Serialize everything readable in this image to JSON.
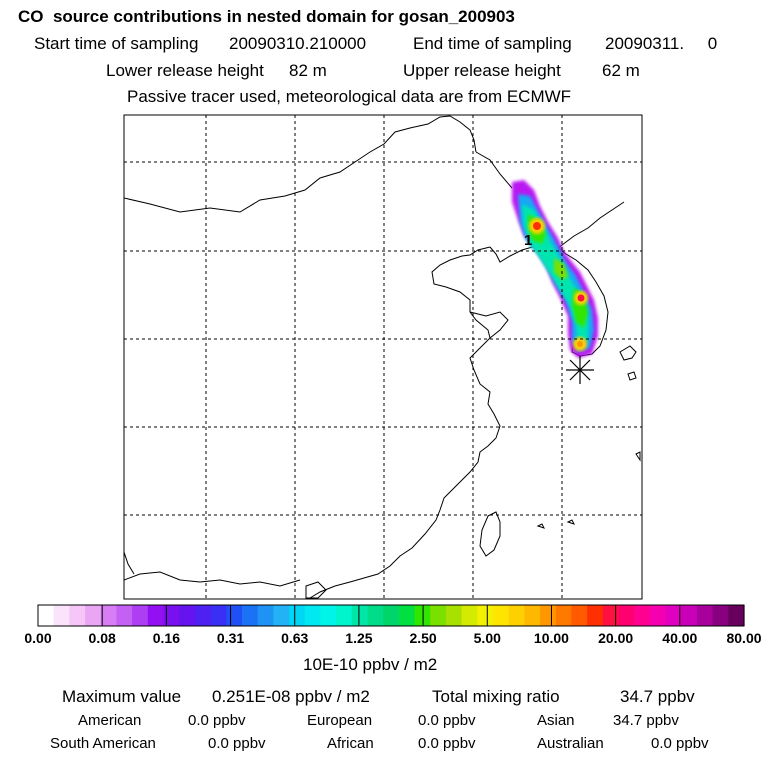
{
  "header": {
    "title": "CO  source contributions in nested domain for gosan_200903",
    "start_label": "Start time of sampling",
    "start_value": "20090310.210000",
    "end_label": "End time of sampling",
    "end_value": "20090311.     0",
    "lower_label": "Lower release height",
    "lower_value": "82 m",
    "upper_label": "Upper release height",
    "upper_value": "62 m",
    "note": "Passive tracer used, meteorological data are from ECMWF"
  },
  "map": {
    "source_marker": "1",
    "receptor_symbol": "asterisk-icon"
  },
  "colorbar": {
    "ticks": [
      "0.00",
      "0.08",
      "0.16",
      "0.31",
      "0.63",
      "1.25",
      "2.50",
      "5.00",
      "10.00",
      "20.00",
      "40.00",
      "80.00"
    ],
    "unit": "10E-10 ppbv / m2",
    "colors": [
      "#ffffff",
      "#fbe3fb",
      "#f5c6f7",
      "#eba6f3",
      "#d77ef5",
      "#c460f3",
      "#ad3ef2",
      "#9310f2",
      "#7a10f0",
      "#6514f0",
      "#4e20f2",
      "#3a30f5",
      "#2050f5",
      "#1a72f5",
      "#1e92f5",
      "#22b2f5",
      "#00d5f5",
      "#00e8f0",
      "#00f5e8",
      "#00f5cc",
      "#00e5a8",
      "#00dd88",
      "#00d56a",
      "#00e040",
      "#30e600",
      "#7ae000",
      "#a8e000",
      "#d4ea00",
      "#f2f200",
      "#ffe400",
      "#ffd000",
      "#ffb800",
      "#ff9800",
      "#ff7800",
      "#ff5a00",
      "#ff3000",
      "#ff1040",
      "#ff0070",
      "#ff0090",
      "#f500b0",
      "#e000c0",
      "#c800b8",
      "#a8009c",
      "#880080",
      "#66005c"
    ]
  },
  "stats": {
    "max_label": "Maximum value",
    "max_value": "0.251E-08 ppbv / m2",
    "total_label": "Total mixing ratio",
    "total_value": "34.7 ppbv"
  },
  "sources": {
    "american_label": "American",
    "american_value": "0.0 ppbv",
    "european_label": "European",
    "european_value": "0.0 ppbv",
    "asian_label": "Asian",
    "asian_value": "34.7 ppbv",
    "south_american_label": "South American",
    "south_american_value": "0.0 ppbv",
    "african_label": "African",
    "african_value": "0.0 ppbv",
    "australian_label": "Australian",
    "australian_value": "0.0 ppbv"
  }
}
